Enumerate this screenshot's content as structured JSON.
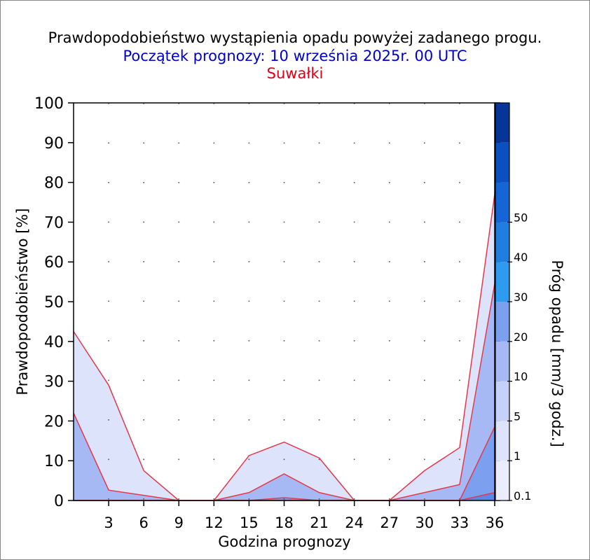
{
  "titles": {
    "main": "Prawdopodobieństwo wystąpienia opadu powyżej zadanego progu.",
    "forecast_start": "Początek prognozy: 10 września 2025r. 00 UTC",
    "location": "Suwałki"
  },
  "colors": {
    "title_main": "#000000",
    "title_forecast": "#0000cc",
    "title_location": "#e0001b",
    "series_line": "#e23a4a",
    "grid_dots": "#555555"
  },
  "chart_data": {
    "type": "area",
    "title": "Prawdopodobieństwo wystąpienia opadu powyżej zadanego progu.",
    "subtitle": "Początek prognozy: 10 września 2025r. 00 UTC",
    "location": "Suwałki",
    "xlabel": "Godzina prognozy",
    "ylabel": "Prawdopodobieństwo [%]",
    "xlim": [
      0,
      36
    ],
    "ylim": [
      0,
      100
    ],
    "x": [
      0,
      3,
      6,
      9,
      12,
      15,
      18,
      21,
      24,
      27,
      30,
      33,
      36
    ],
    "x_ticks": [
      3,
      6,
      9,
      12,
      15,
      18,
      21,
      24,
      27,
      30,
      33,
      36
    ],
    "y_ticks": [
      0,
      10,
      20,
      30,
      40,
      50,
      60,
      70,
      80,
      90,
      100
    ],
    "grid": "dotted",
    "series": [
      {
        "threshold": 0.1,
        "color": "#dde3fb",
        "values": [
          42.5,
          29,
          7.5,
          0,
          0,
          11.3,
          14.7,
          10.7,
          0,
          0,
          7.5,
          13.3,
          77
        ]
      },
      {
        "threshold": 1,
        "color": "#a7b9f4",
        "values": [
          22,
          2.6,
          1.3,
          0,
          0,
          2,
          6.7,
          2,
          0,
          0,
          2,
          4,
          54.5
        ]
      },
      {
        "threshold": 5,
        "color": "#7d9ff0",
        "values": [
          0,
          0,
          0,
          0,
          0,
          0,
          0.7,
          0,
          0,
          0,
          0,
          0,
          18.5
        ]
      },
      {
        "threshold": 10,
        "color": "#5a88ea",
        "values": [
          0,
          0,
          0,
          0,
          0,
          0,
          0,
          0,
          0,
          0,
          0,
          0,
          2
        ]
      }
    ],
    "colorbar": {
      "label": "Próg opadu [mm/3 godz.]",
      "tick_labels": [
        "0.1",
        "1",
        "5",
        "10",
        "20",
        "30",
        "40",
        "50"
      ],
      "colors": [
        "#e9edfd",
        "#dde3fb",
        "#c5d1f8",
        "#a7b9f4",
        "#7d9ff0",
        "#2f9bf0",
        "#1f7ee0",
        "#1565d6",
        "#0b50c0",
        "#06359a"
      ]
    }
  }
}
